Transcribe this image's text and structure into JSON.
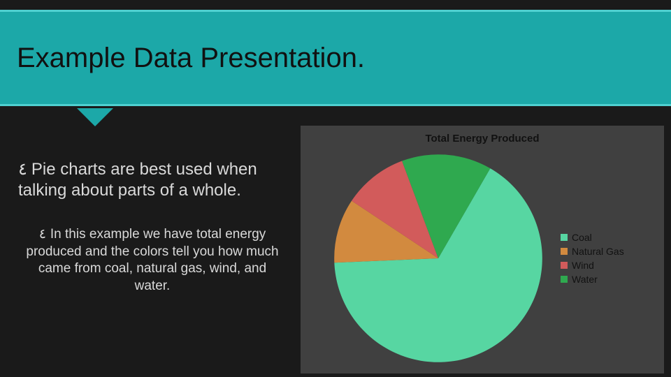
{
  "slide": {
    "title": "Example Data Presentation.",
    "header_bg": "#1ca8a8",
    "header_border": "#4fd0d0",
    "page_bg": "#1a1a1a",
    "text_color": "#d9d9d9",
    "bullet1": "Pie charts are best used when talking about parts of a whole.",
    "bullet2": "In this example we have total energy produced and the colors tell you how much came from coal, natural gas, wind, and water.",
    "bullet_glyph": "٤"
  },
  "chart": {
    "type": "pie",
    "title": "Total Energy Produced",
    "title_fontsize": 15,
    "panel_bg": "#404040",
    "start_angle_deg": -60,
    "slices": [
      {
        "label": "Coal",
        "value": 66,
        "color": "#57d6a2"
      },
      {
        "label": "Natural Gas",
        "value": 10,
        "color": "#d28a3f"
      },
      {
        "label": "Wind",
        "value": 10,
        "color": "#d25b5b"
      },
      {
        "label": "Water",
        "value": 14,
        "color": "#2fa94f"
      }
    ],
    "legend_fontsize": 14,
    "legend_swatch_size": 10
  }
}
